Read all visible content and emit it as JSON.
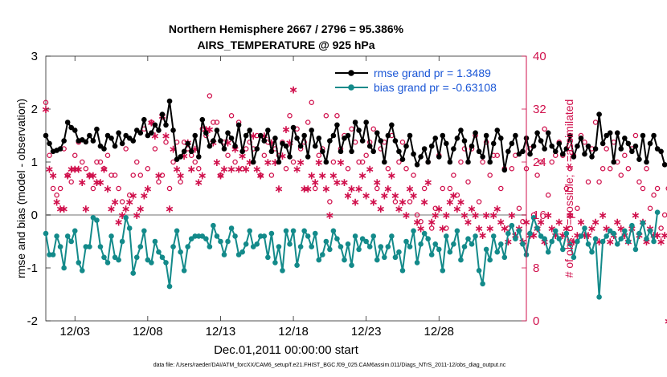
{
  "chart_data": {
    "type": "line",
    "title_line1": "Northern Hemisphere 2667 / 2796 = 95.386%",
    "title_line2": "AIRS_TEMPERATURE @ 925 hPa",
    "ylabel": "rmse and bias (model - observation)",
    "ylabel_right": "# of obs: o=possible; ∗=assimilated",
    "xlabel": "Dec.01,2011 00:00:00 start",
    "footnote": "data file: /Users/raeder/DAI/ATM_forcXX/CAM6_setup/f.e21.FHIST_BGC.f09_025.CAM6assim.011/Diags_NTrS_2011-12/obs_diag_output.nc",
    "ylim": [
      -2,
      3
    ],
    "ylim_right": [
      0,
      40
    ],
    "xlim": [
      0,
      33
    ],
    "yticks": [
      "-2",
      "-1",
      "0",
      "1",
      "2",
      "3"
    ],
    "yticks_right": [
      "0",
      "8",
      "16",
      "24",
      "32",
      "40"
    ],
    "xticks": [
      {
        "label": "12/03",
        "x": 2
      },
      {
        "label": "12/08",
        "x": 7
      },
      {
        "label": "12/13",
        "x": 12
      },
      {
        "label": "12/18",
        "x": 17
      },
      {
        "label": "12/23",
        "x": 22
      },
      {
        "label": "12/28",
        "x": 27
      }
    ],
    "legend": {
      "position": "top-right",
      "entries": [
        "rmse grand pr = 1.3489",
        "bias grand pr = -0.63108"
      ]
    },
    "colors": {
      "rmse": "#000000",
      "bias": "#138a8a",
      "obs": "#d0104c",
      "zero": "#b8b8b8"
    },
    "series": [
      {
        "name": "rmse",
        "x0": 0,
        "dx": 0.25,
        "values": [
          1.5,
          1.35,
          1.2,
          1.22,
          1.25,
          1.4,
          1.75,
          1.65,
          1.6,
          1.4,
          1.42,
          1.38,
          1.5,
          1.4,
          1.62,
          1.3,
          1.25,
          1.5,
          1.45,
          1.3,
          1.55,
          1.35,
          1.5,
          1.45,
          1.4,
          1.6,
          1.55,
          1.8,
          1.5,
          1.55,
          1.7,
          1.6,
          1.9,
          1.7,
          2.15,
          1.6,
          1.05,
          1.1,
          1.2,
          1.35,
          1.2,
          1.5,
          1.1,
          1.8,
          1.55,
          1.3,
          1.4,
          1.6,
          1.4,
          1.25,
          1.55,
          1.45,
          1.3,
          1.7,
          1.2,
          1.5,
          1.6,
          1.0,
          1.25,
          1.5,
          1.4,
          1.6,
          1.2,
          1.45,
          1.0,
          1.35,
          1.3,
          1.1,
          1.65,
          1.45,
          1.3,
          1.5,
          1.1,
          1.6,
          1.3,
          1.45,
          1.2,
          1.0,
          1.4,
          1.5,
          1.7,
          1.2,
          1.45,
          1.5,
          1.2,
          1.75,
          1.6,
          1.4,
          1.75,
          1.3,
          1.2,
          1.55,
          1.4,
          1.0,
          1.5,
          1.7,
          1.4,
          1.2,
          1.05,
          1.3,
          1.5,
          1.15,
          0.95,
          1.1,
          1.25,
          1.0,
          1.3,
          1.45,
          1.1,
          1.5,
          1.35,
          1.0,
          1.25,
          1.45,
          1.6,
          1.4,
          1.0,
          1.3,
          1.55,
          1.2,
          1.1,
          1.5,
          1.0,
          1.35,
          1.6,
          1.45,
          0.85,
          1.2,
          1.35,
          1.5,
          1.15,
          1.2,
          1.45,
          1.15,
          1.3,
          1.55,
          1.4,
          1.25,
          1.55,
          1.3,
          1.2,
          1.35,
          1.15,
          1.25,
          1.5,
          1.1,
          1.3,
          1.45,
          1.15,
          1.3,
          1.1,
          1.25,
          1.9,
          1.35,
          1.5,
          1.55,
          1.0,
          1.55,
          1.25,
          1.45,
          1.35,
          1.2,
          1.3,
          1.05,
          1.5,
          1.0,
          1.35,
          1.5,
          1.25,
          1.2,
          0.95
        ]
      },
      {
        "name": "bias",
        "x0": 0,
        "dx": 0.25,
        "values": [
          -0.35,
          -0.75,
          -0.75,
          -0.4,
          -0.6,
          -1.0,
          -0.4,
          -0.5,
          -0.3,
          -0.9,
          -1.05,
          -0.6,
          -0.6,
          -0.05,
          -0.1,
          -0.6,
          -0.8,
          -0.9,
          -0.4,
          -0.8,
          -0.85,
          -0.5,
          -0.05,
          -0.25,
          -1.1,
          -0.8,
          -0.6,
          -0.3,
          -0.85,
          -0.9,
          -0.5,
          -0.7,
          -0.8,
          -0.9,
          -1.35,
          -0.6,
          -0.3,
          -0.7,
          -1.05,
          -0.6,
          -0.45,
          -0.4,
          -0.4,
          -0.4,
          -0.45,
          -0.6,
          -0.2,
          -0.4,
          -0.5,
          -0.75,
          -0.5,
          -0.25,
          -0.4,
          -0.75,
          -0.7,
          -0.55,
          -0.3,
          -0.6,
          -0.55,
          -0.4,
          -0.4,
          -0.8,
          -0.35,
          -0.9,
          -0.6,
          -1.05,
          -0.3,
          -0.55,
          -0.3,
          -0.95,
          -0.6,
          -0.3,
          -0.4,
          -0.6,
          -0.35,
          -0.85,
          -0.75,
          -0.5,
          -0.65,
          -0.3,
          -0.45,
          -0.6,
          -0.85,
          -0.55,
          -0.95,
          -0.4,
          -0.65,
          -0.45,
          -0.5,
          -0.6,
          -0.4,
          -0.85,
          -0.6,
          -0.8,
          -0.6,
          -0.4,
          -0.8,
          -0.7,
          -1.05,
          -0.5,
          -0.6,
          -0.3,
          -0.9,
          -0.55,
          -0.35,
          -0.45,
          -0.75,
          -0.55,
          -0.65,
          -1.05,
          -0.4,
          -0.7,
          -0.55,
          -0.3,
          -0.85,
          -0.6,
          -0.45,
          -0.55,
          -0.4,
          -1.05,
          -1.3,
          -0.65,
          -0.85,
          -0.4,
          -0.7,
          -0.55,
          -0.8,
          -0.35,
          -0.2,
          -0.45,
          -0.3,
          -0.55,
          -0.75,
          -0.35,
          -0.05,
          -0.25,
          -0.4,
          -0.45,
          -0.7,
          -0.5,
          -0.3,
          -0.45,
          -0.65,
          -0.35,
          -0.55,
          -0.8,
          -0.5,
          -0.4,
          -0.25,
          -0.55,
          -0.7,
          -0.45,
          -1.55,
          -0.5,
          -0.4,
          -0.3,
          -0.35,
          -0.55,
          -0.45,
          -0.3,
          -0.5,
          -0.2,
          -0.65,
          -0.35,
          -0.15,
          -0.45,
          -0.3,
          -0.5,
          0.05
        ]
      },
      {
        "name": "obs_possible",
        "x0": 0,
        "dx": 0.25,
        "values": [
          33,
          25,
          20,
          19,
          20,
          26,
          22,
          21,
          25,
          27,
          24,
          23,
          22,
          20,
          24,
          24,
          23,
          25,
          22,
          22,
          20,
          18,
          26,
          19,
          22,
          24,
          22,
          29,
          23,
          30,
          26,
          21,
          22,
          27,
          20,
          24,
          27,
          21,
          27,
          26,
          25,
          24,
          23,
          29,
          28,
          34,
          30,
          30,
          22,
          27,
          25,
          31,
          24,
          30,
          23,
          26,
          27,
          26,
          28,
          22,
          25,
          27,
          22,
          26,
          25,
          27,
          23,
          31,
          24,
          29,
          26,
          27,
          30,
          33,
          20,
          25,
          26,
          31,
          18,
          24,
          31,
          26,
          28,
          23,
          29,
          27,
          24,
          24,
          25,
          27,
          29,
          20,
          26,
          27,
          23,
          28,
          18,
          24,
          27,
          23,
          18,
          22,
          16,
          15,
          20,
          24,
          14,
          17,
          25,
          20,
          14,
          20,
          22,
          19,
          24,
          26,
          21,
          26,
          28,
          18,
          24,
          27,
          22,
          25,
          25,
          20,
          23,
          14,
          23,
          25,
          17,
          15,
          23,
          26,
          16,
          22,
          24,
          29,
          19,
          24,
          25,
          27,
          25,
          20,
          23,
          25,
          17,
          28,
          27,
          21,
          26,
          30,
          21,
          23,
          26,
          23,
          27,
          24,
          22,
          25,
          23,
          26,
          28,
          21,
          20,
          23,
          17,
          19,
          20,
          14,
          16,
          20
        ]
      },
      {
        "name": "obs_assimilated",
        "x0": 0,
        "dx": 0.25,
        "values": [
          32,
          23,
          22,
          18,
          17,
          17,
          22,
          23,
          23,
          23,
          21,
          17,
          22,
          22,
          21,
          21,
          23,
          20,
          17,
          18,
          15,
          16,
          17,
          18,
          19,
          16,
          17,
          19,
          20,
          30,
          28,
          22,
          31,
          28,
          17,
          26,
          23,
          22,
          25,
          27,
          23,
          26,
          21,
          22,
          29,
          29,
          27,
          24,
          22,
          23,
          27,
          23,
          26,
          23,
          25,
          23,
          24,
          28,
          23,
          22,
          28,
          24,
          27,
          24,
          20,
          25,
          29,
          27,
          35,
          23,
          24,
          20,
          20,
          22,
          21,
          24,
          22,
          20,
          16,
          22,
          21,
          24,
          21,
          19,
          20,
          18,
          20,
          22,
          19,
          23,
          18,
          21,
          17,
          19,
          20,
          22,
          19,
          17,
          18,
          16,
          20,
          19,
          15,
          14,
          18,
          21,
          15,
          16,
          17,
          14,
          16,
          18,
          19,
          17,
          18,
          16,
          15,
          17,
          16,
          14,
          13,
          16,
          14,
          16,
          17,
          15,
          14,
          12,
          16,
          13,
          14,
          12,
          15,
          13,
          13,
          14,
          15,
          12,
          16,
          14,
          13,
          15,
          13,
          14,
          16,
          12,
          13,
          15,
          13,
          13,
          14,
          15,
          12,
          16,
          14,
          12,
          13,
          15,
          14,
          13,
          12,
          14,
          16,
          13,
          15,
          12,
          14,
          13,
          13,
          12,
          13,
          0
        ]
      }
    ]
  }
}
